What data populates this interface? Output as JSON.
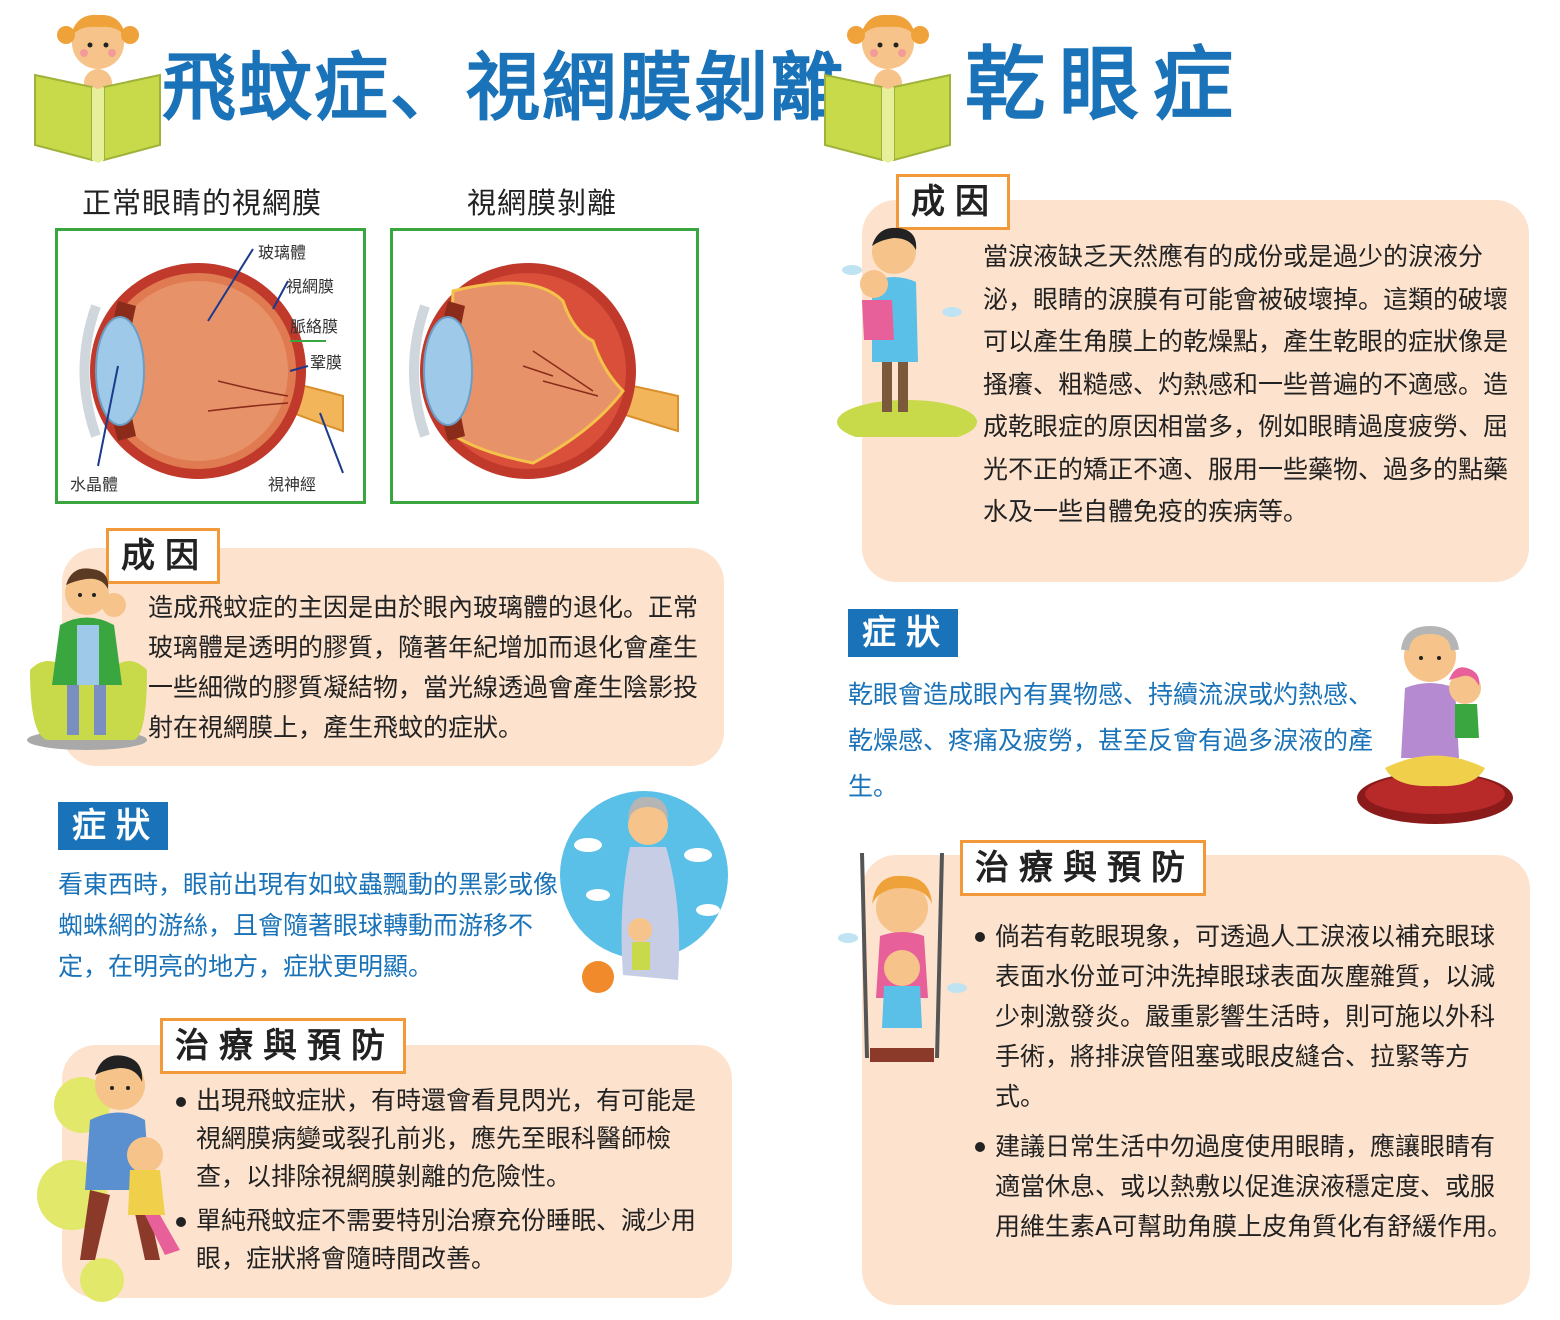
{
  "left": {
    "title": "飛蚊症、視網膜剝離",
    "normal_eye_caption": "正常眼睛的視網膜",
    "detached_eye_caption": "視網膜剝離",
    "eye_labels": {
      "vitreous": "玻璃體",
      "retina": "視網膜",
      "choroid": "脈絡膜",
      "sclera": "鞏膜",
      "lens": "水晶體",
      "optic_nerve": "視神經"
    },
    "cause_heading": "成因",
    "cause_text": "造成飛蚊症的主因是由於眼內玻璃體的退化。正常玻璃體是透明的膠質，隨著年紀增加而退化會產生一些細微的膠質凝結物，當光線透過會產生陰影投射在視網膜上，產生飛蚊的症狀。",
    "symptom_heading": "症狀",
    "symptom_text": "看東西時，眼前出現有如蚊蟲飄動的黑影或像蜘蛛網的游絲，且會隨著眼球轉動而游移不定，在明亮的地方，症狀更明顯。",
    "treatment_heading": "治療與預防",
    "treatment_items": [
      "出現飛蚊症狀，有時還會看見閃光，有可能是視網膜病變或裂孔前兆，應先至眼科醫師檢查，以排除視網膜剝離的危險性。",
      "單純飛蚊症不需要特別治療充份睡眠、減少用眼，症狀將會隨時間改善。"
    ]
  },
  "right": {
    "title": "乾眼症",
    "cause_heading": "成因",
    "cause_text": "當淚液缺乏天然應有的成份或是過少的淚液分泌，眼睛的淚膜有可能會被破壞掉。這類的破壞可以產生角膜上的乾燥點，產生乾眼的症狀像是搔癢、粗糙感、灼熱感和一些普遍的不適感。造成乾眼症的原因相當多，例如眼睛過度疲勞、屈光不正的矯正不適、服用一些藥物、過多的點藥水及一些自體免疫的疾病等。",
    "symptom_heading": "症狀",
    "symptom_text": "乾眼會造成眼內有異物感、持續流淚或灼熱感、乾燥感、疼痛及疲勞，甚至反會有過多淚液的產生。",
    "treatment_heading": "治療與預防",
    "treatment_items": [
      "倘若有乾眼現象，可透過人工淚液以補充眼球表面水份並可沖洗掉眼球表面灰塵雜質，以減少刺激發炎。嚴重影響生活時，則可施以外科手術，將排淚管阻塞或眼皮縫合、拉緊等方式。",
      "建議日常生活中勿過度使用眼睛，應讓眼睛有適當休息、或以熱敷以促進淚液穩定度、或服用維生素A可幫助角膜上皮角質化有舒緩作用。"
    ]
  },
  "colors": {
    "title_blue": "#1a73b8",
    "panel_peach": "#fde3ce",
    "tag_orange_border": "#f29a3a",
    "box_green": "#3aa63f",
    "book_green": "#c8d94a"
  }
}
